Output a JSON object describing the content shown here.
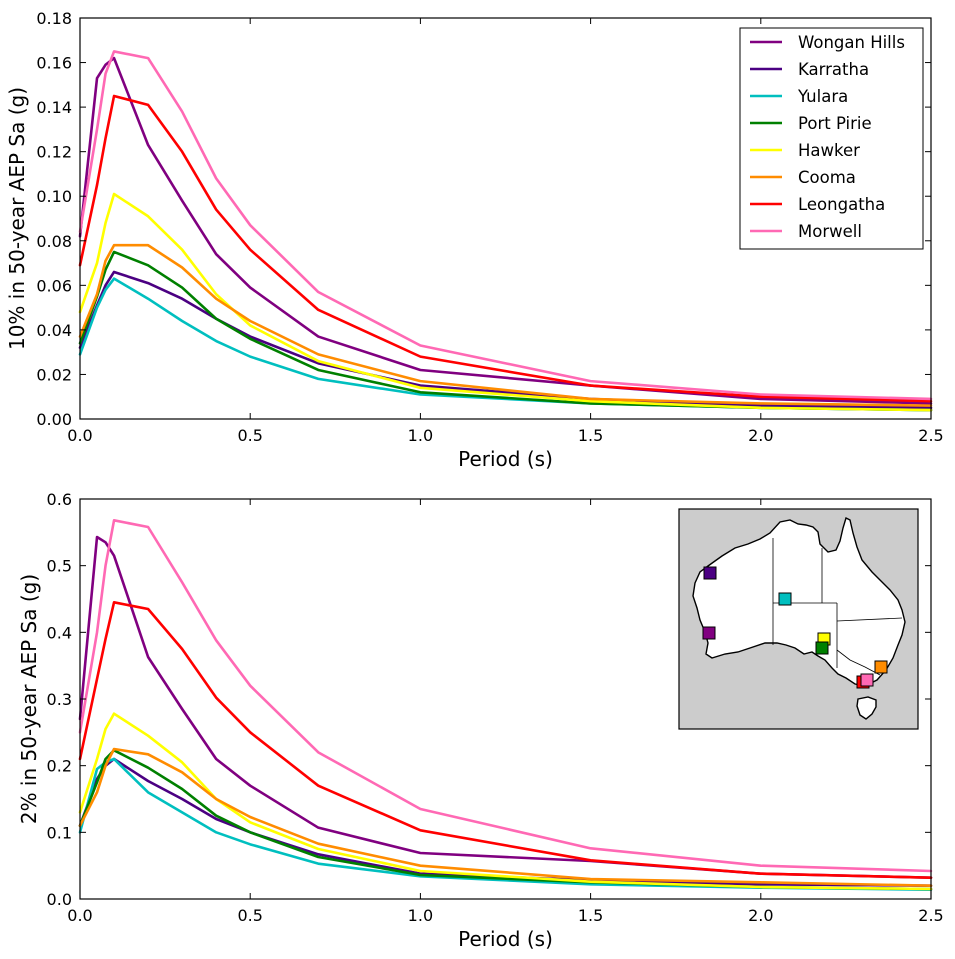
{
  "chart_data": [
    {
      "type": "line",
      "title": "",
      "xlabel": "Period (s)",
      "ylabel": "10% in 50-year AEP Sa (g)",
      "xlim": [
        0,
        2.5
      ],
      "ylim": [
        0,
        0.18
      ],
      "xticks": [
        "0.0",
        "0.5",
        "1.0",
        "1.5",
        "2.0",
        "2.5"
      ],
      "yticks": [
        "0.00",
        "0.02",
        "0.04",
        "0.06",
        "0.08",
        "0.10",
        "0.12",
        "0.14",
        "0.16",
        "0.18"
      ],
      "grid": false,
      "legend": "upper right",
      "x": [
        0.0,
        0.05,
        0.075,
        0.1,
        0.2,
        0.3,
        0.4,
        0.5,
        0.7,
        1.0,
        1.5,
        2.0,
        2.5
      ],
      "series": [
        {
          "name": "Wongan Hills",
          "color": "#800080",
          "values": [
            0.082,
            0.153,
            0.159,
            0.162,
            0.123,
            0.098,
            0.074,
            0.059,
            0.037,
            0.022,
            0.015,
            0.009,
            0.007
          ]
        },
        {
          "name": "Karratha",
          "color": "#4b0082",
          "values": [
            0.032,
            0.051,
            0.06,
            0.066,
            0.061,
            0.054,
            0.045,
            0.037,
            0.025,
            0.015,
            0.009,
            0.006,
            0.005
          ]
        },
        {
          "name": "Yulara",
          "color": "#00bfbf",
          "values": [
            0.029,
            0.05,
            0.058,
            0.063,
            0.054,
            0.044,
            0.035,
            0.028,
            0.018,
            0.011,
            0.007,
            0.005,
            0.004
          ]
        },
        {
          "name": "Port Pirie",
          "color": "#008000",
          "values": [
            0.034,
            0.055,
            0.067,
            0.075,
            0.069,
            0.059,
            0.045,
            0.036,
            0.022,
            0.012,
            0.007,
            0.005,
            0.004
          ]
        },
        {
          "name": "Hawker",
          "color": "#ffff00",
          "values": [
            0.048,
            0.07,
            0.088,
            0.101,
            0.091,
            0.076,
            0.056,
            0.042,
            0.026,
            0.014,
            0.008,
            0.005,
            0.004
          ]
        },
        {
          "name": "Cooma",
          "color": "#ff8c00",
          "values": [
            0.037,
            0.056,
            0.071,
            0.078,
            0.078,
            0.068,
            0.054,
            0.044,
            0.029,
            0.017,
            0.009,
            0.007,
            0.006
          ]
        },
        {
          "name": "Leongatha",
          "color": "#ff0000",
          "values": [
            0.069,
            0.105,
            0.126,
            0.145,
            0.141,
            0.12,
            0.094,
            0.076,
            0.049,
            0.028,
            0.015,
            0.01,
            0.008
          ]
        },
        {
          "name": "Morwell",
          "color": "#ff69b4",
          "values": [
            0.084,
            0.13,
            0.155,
            0.165,
            0.162,
            0.138,
            0.108,
            0.087,
            0.057,
            0.033,
            0.017,
            0.011,
            0.009
          ]
        }
      ]
    },
    {
      "type": "line",
      "title": "",
      "xlabel": "Period (s)",
      "ylabel": "2% in 50-year AEP Sa (g)",
      "xlim": [
        0,
        2.5
      ],
      "ylim": [
        0,
        0.6
      ],
      "xticks": [
        "0.0",
        "0.5",
        "1.0",
        "1.5",
        "2.0",
        "2.5"
      ],
      "yticks": [
        "0.0",
        "0.1",
        "0.2",
        "0.3",
        "0.4",
        "0.5",
        "0.6"
      ],
      "grid": false,
      "legend": "none",
      "x": [
        0.0,
        0.05,
        0.075,
        0.1,
        0.2,
        0.3,
        0.4,
        0.5,
        0.7,
        1.0,
        1.5,
        2.0,
        2.5
      ],
      "series": [
        {
          "name": "Wongan Hills",
          "color": "#800080",
          "values": [
            0.27,
            0.543,
            0.535,
            0.515,
            0.363,
            0.285,
            0.21,
            0.17,
            0.107,
            0.069,
            0.057,
            0.038,
            0.032
          ]
        },
        {
          "name": "Karratha",
          "color": "#4b0082",
          "values": [
            0.11,
            0.18,
            0.2,
            0.21,
            0.177,
            0.15,
            0.12,
            0.1,
            0.067,
            0.038,
            0.028,
            0.022,
            0.02
          ]
        },
        {
          "name": "Yulara",
          "color": "#00bfbf",
          "values": [
            0.1,
            0.195,
            0.205,
            0.21,
            0.16,
            0.13,
            0.1,
            0.082,
            0.053,
            0.034,
            0.022,
            0.017,
            0.014
          ]
        },
        {
          "name": "Port Pirie",
          "color": "#008000",
          "values": [
            0.11,
            0.175,
            0.21,
            0.223,
            0.197,
            0.165,
            0.125,
            0.1,
            0.063,
            0.036,
            0.025,
            0.018,
            0.015
          ]
        },
        {
          "name": "Hawker",
          "color": "#ffff00",
          "values": [
            0.13,
            0.21,
            0.255,
            0.278,
            0.245,
            0.205,
            0.15,
            0.115,
            0.075,
            0.042,
            0.026,
            0.018,
            0.015
          ]
        },
        {
          "name": "Cooma",
          "color": "#ff8c00",
          "values": [
            0.11,
            0.16,
            0.2,
            0.225,
            0.217,
            0.19,
            0.15,
            0.123,
            0.083,
            0.05,
            0.03,
            0.025,
            0.02
          ]
        },
        {
          "name": "Leongatha",
          "color": "#ff0000",
          "values": [
            0.21,
            0.33,
            0.39,
            0.445,
            0.435,
            0.375,
            0.302,
            0.25,
            0.17,
            0.103,
            0.058,
            0.038,
            0.032
          ]
        },
        {
          "name": "Morwell",
          "color": "#ff69b4",
          "values": [
            0.25,
            0.4,
            0.5,
            0.568,
            0.558,
            0.475,
            0.388,
            0.32,
            0.22,
            0.135,
            0.076,
            0.05,
            0.042
          ]
        }
      ],
      "inset_map": {
        "region": "Australia",
        "ocean_color": "#cccccc",
        "land_color": "#ffffff",
        "site_markers": [
          {
            "name": "Karratha",
            "color": "#4b0082"
          },
          {
            "name": "Wongan Hills",
            "color": "#800080"
          },
          {
            "name": "Yulara",
            "color": "#00bfbf"
          },
          {
            "name": "Hawker",
            "color": "#ffff00"
          },
          {
            "name": "Port Pirie",
            "color": "#008000"
          },
          {
            "name": "Cooma",
            "color": "#ff8c00"
          },
          {
            "name": "Leongatha",
            "color": "#ff0000"
          },
          {
            "name": "Morwell",
            "color": "#ff69b4"
          }
        ]
      }
    }
  ]
}
